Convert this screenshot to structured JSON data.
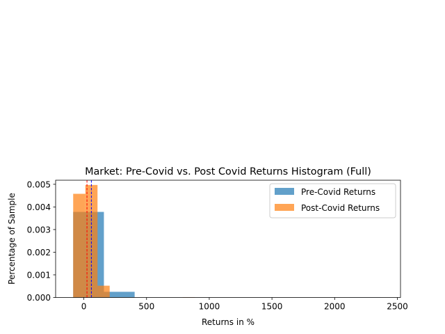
{
  "chart_data": {
    "type": "bar",
    "title": "Market: Pre-Covid vs. Post Covid Returns Histogram (Full)",
    "xlabel": "Returns in %",
    "ylabel": "Percentage of Sample",
    "xlim": [
      -225,
      2525
    ],
    "ylim": [
      0,
      0.00518
    ],
    "xticks": [
      0,
      500,
      1000,
      1500,
      2000,
      2500
    ],
    "xtick_labels": [
      "0",
      "500",
      "1000",
      "1500",
      "2000",
      "2500"
    ],
    "yticks": [
      0.0,
      0.001,
      0.002,
      0.003,
      0.004,
      0.005
    ],
    "ytick_labels": [
      "0.000",
      "0.001",
      "0.002",
      "0.003",
      "0.004",
      "0.005"
    ],
    "grid": false,
    "legend_position": "upper right",
    "series": [
      {
        "name": "Pre-Covid Returns",
        "color": "#1f77b4",
        "opacity": 0.7,
        "bins": [
          {
            "x0": -85,
            "x1": 160,
            "value": 0.00378
          },
          {
            "x0": 160,
            "x1": 405,
            "value": 0.00025
          },
          {
            "x0": 405,
            "x1": 650,
            "value": 0
          },
          {
            "x0": 650,
            "x1": 895,
            "value": 0
          },
          {
            "x0": 895,
            "x1": 1140,
            "value": 0
          },
          {
            "x0": 1140,
            "x1": 1385,
            "value": 0
          },
          {
            "x0": 1385,
            "x1": 1630,
            "value": 0
          },
          {
            "x0": 1630,
            "x1": 1875,
            "value": 0
          },
          {
            "x0": 1875,
            "x1": 2120,
            "value": 0
          },
          {
            "x0": 2120,
            "x1": 2365,
            "value": 4e-06
          }
        ]
      },
      {
        "name": "Post-Covid Returns",
        "color": "#ff7f0e",
        "opacity": 0.7,
        "bins": [
          {
            "x0": -85,
            "x1": 12,
            "value": 0.00458
          },
          {
            "x0": 12,
            "x1": 109,
            "value": 0.00497
          },
          {
            "x0": 109,
            "x1": 206,
            "value": 0.00052
          },
          {
            "x0": 206,
            "x1": 303,
            "value": 0
          },
          {
            "x0": 303,
            "x1": 400,
            "value": 0
          },
          {
            "x0": 400,
            "x1": 497,
            "value": 0
          },
          {
            "x0": 497,
            "x1": 594,
            "value": 0
          },
          {
            "x0": 594,
            "x1": 691,
            "value": 0
          },
          {
            "x0": 691,
            "x1": 788,
            "value": 0
          },
          {
            "x0": 788,
            "x1": 885,
            "value": 1.2e-05
          }
        ]
      }
    ],
    "vlines": [
      {
        "x": 25,
        "color": "#ff0000",
        "style": "dashed"
      },
      {
        "x": 60,
        "color": "#0000ff",
        "style": "dashed"
      }
    ]
  }
}
